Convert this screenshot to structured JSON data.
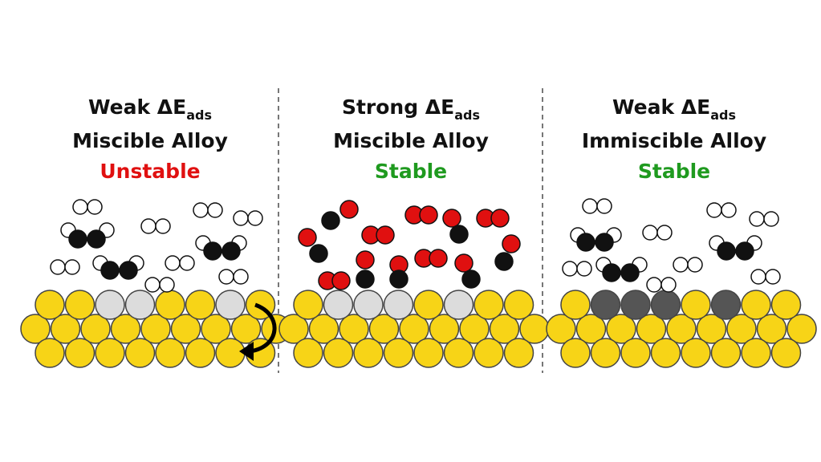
{
  "panels": [
    {
      "strength": {
        "label": "Weak ΔE",
        "subscript": "ads"
      },
      "alloy": "Miscible Alloy",
      "status": "Unstable",
      "status_color": "#e01010"
    },
    {
      "strength": {
        "label": "Strong ΔE",
        "subscript": "ads"
      },
      "alloy": "Miscible Alloy",
      "status": "Stable",
      "status_color": "#1f9a1f"
    },
    {
      "strength": {
        "label": "Weak ΔE",
        "subscript": "ads"
      },
      "alloy": "Immiscible Alloy",
      "status": "Stable",
      "status_color": "#1f9a1f"
    }
  ]
}
